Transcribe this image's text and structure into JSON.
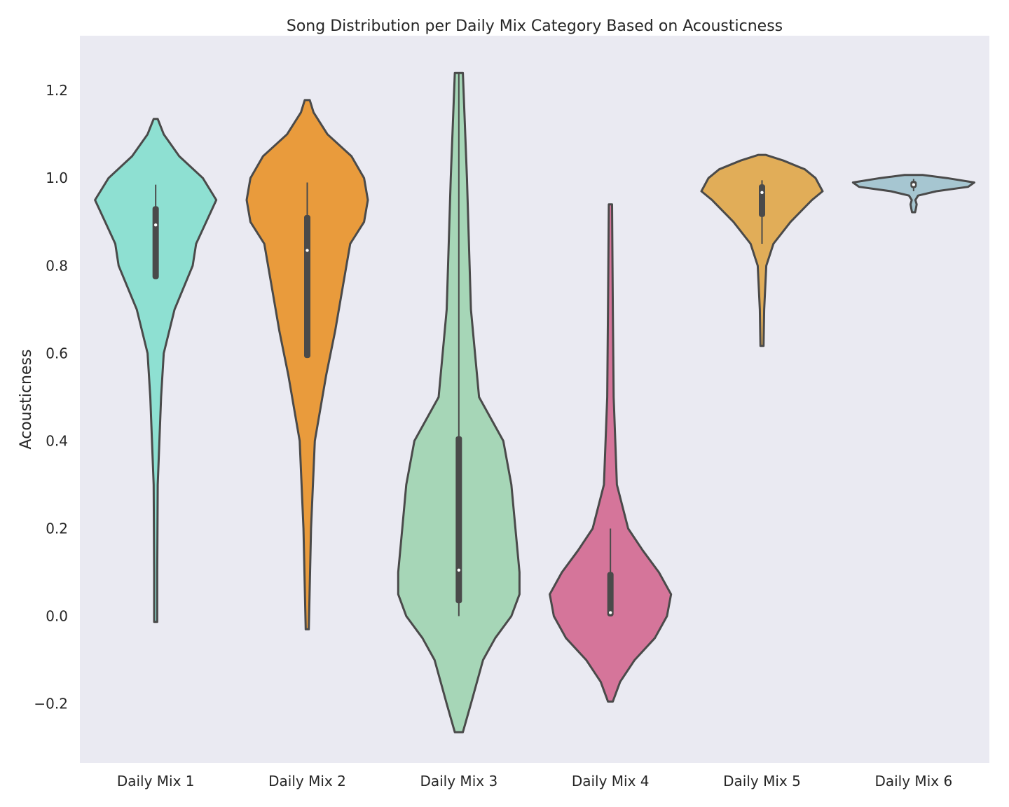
{
  "chart_data": {
    "type": "violin",
    "title": "Song Distribution per Daily Mix Category Based on Acousticness",
    "xlabel": "",
    "ylabel": "Acousticness",
    "ylim": [
      -0.335,
      1.325
    ],
    "yticks": [
      -0.2,
      0.0,
      0.2,
      0.4,
      0.6,
      0.8,
      1.0,
      1.2
    ],
    "ytick_labels": [
      "−0.2",
      "0.0",
      "0.2",
      "0.4",
      "0.6",
      "0.8",
      "1.0",
      "1.2"
    ],
    "grid": false,
    "background_color": "#eaeaf2",
    "outline_color": "#4a4a4a",
    "categories": [
      "Daily Mix 1",
      "Daily Mix 2",
      "Daily Mix 3",
      "Daily Mix 4",
      "Daily Mix 5",
      "Daily Mix 6"
    ],
    "series": [
      {
        "category": "Daily Mix 1",
        "color": "#8ee0d2",
        "min": -0.013,
        "max": 1.135,
        "q1": 0.77,
        "median": 0.893,
        "q3": 0.935,
        "whisker_low": 0.77,
        "whisker_high": 0.985,
        "density": [
          [
            -0.013,
            0.001
          ],
          [
            0.1,
            0.002
          ],
          [
            0.3,
            0.003
          ],
          [
            0.5,
            0.008
          ],
          [
            0.6,
            0.012
          ],
          [
            0.7,
            0.028
          ],
          [
            0.8,
            0.055
          ],
          [
            0.85,
            0.06
          ],
          [
            0.9,
            0.075
          ],
          [
            0.95,
            0.09
          ],
          [
            1.0,
            0.07
          ],
          [
            1.05,
            0.035
          ],
          [
            1.1,
            0.012
          ],
          [
            1.135,
            0.003
          ]
        ]
      },
      {
        "category": "Daily Mix 2",
        "color": "#e99b3c",
        "min": -0.03,
        "max": 1.178,
        "q1": 0.59,
        "median": 0.835,
        "q3": 0.915,
        "whisker_low": 0.59,
        "whisker_high": 0.99,
        "density": [
          [
            -0.03,
            0.001
          ],
          [
            0.2,
            0.003
          ],
          [
            0.4,
            0.006
          ],
          [
            0.55,
            0.015
          ],
          [
            0.65,
            0.022
          ],
          [
            0.75,
            0.028
          ],
          [
            0.85,
            0.034
          ],
          [
            0.9,
            0.045
          ],
          [
            0.95,
            0.048
          ],
          [
            1.0,
            0.045
          ],
          [
            1.05,
            0.035
          ],
          [
            1.1,
            0.016
          ],
          [
            1.15,
            0.005
          ],
          [
            1.178,
            0.002
          ]
        ]
      },
      {
        "category": "Daily Mix 3",
        "color": "#a6d6b7",
        "min": -0.265,
        "max": 1.24,
        "q1": 0.03,
        "median": 0.105,
        "q3": 0.41,
        "whisker_low": 0.0,
        "whisker_high": 1.24,
        "density": [
          [
            -0.265,
            0.002
          ],
          [
            -0.2,
            0.006
          ],
          [
            -0.1,
            0.012
          ],
          [
            -0.05,
            0.018
          ],
          [
            0.0,
            0.026
          ],
          [
            0.05,
            0.03
          ],
          [
            0.1,
            0.03
          ],
          [
            0.2,
            0.028
          ],
          [
            0.3,
            0.026
          ],
          [
            0.4,
            0.022
          ],
          [
            0.5,
            0.01
          ],
          [
            0.7,
            0.006
          ],
          [
            1.0,
            0.004
          ],
          [
            1.24,
            0.002
          ]
        ]
      },
      {
        "category": "Daily Mix 4",
        "color": "#d5759a",
        "min": -0.195,
        "max": 0.94,
        "q1": 0.0,
        "median": 0.008,
        "q3": 0.1,
        "whisker_low": 0.0,
        "whisker_high": 0.2,
        "density": [
          [
            -0.195,
            0.003
          ],
          [
            -0.15,
            0.012
          ],
          [
            -0.1,
            0.03
          ],
          [
            -0.05,
            0.055
          ],
          [
            0.0,
            0.07
          ],
          [
            0.05,
            0.075
          ],
          [
            0.1,
            0.06
          ],
          [
            0.15,
            0.04
          ],
          [
            0.2,
            0.022
          ],
          [
            0.3,
            0.008
          ],
          [
            0.5,
            0.004
          ],
          [
            0.7,
            0.003
          ],
          [
            0.94,
            0.002
          ]
        ]
      },
      {
        "category": "Daily Mix 5",
        "color": "#e1ad58",
        "min": 0.617,
        "max": 1.053,
        "q1": 0.912,
        "median": 0.967,
        "q3": 0.985,
        "whisker_low": 0.85,
        "whisker_high": 0.995,
        "density": [
          [
            0.617,
            0.002
          ],
          [
            0.7,
            0.003
          ],
          [
            0.8,
            0.006
          ],
          [
            0.85,
            0.016
          ],
          [
            0.9,
            0.04
          ],
          [
            0.95,
            0.07
          ],
          [
            0.97,
            0.085
          ],
          [
            1.0,
            0.075
          ],
          [
            1.02,
            0.06
          ],
          [
            1.04,
            0.03
          ],
          [
            1.053,
            0.005
          ]
        ]
      },
      {
        "category": "Daily Mix 6",
        "color": "#a6c6d1",
        "min": 0.922,
        "max": 1.007,
        "q1": 0.978,
        "median": 0.985,
        "q3": 0.993,
        "whisker_low": 0.97,
        "whisker_high": 0.998,
        "density": [
          [
            0.922,
            0.004
          ],
          [
            0.93,
            0.015
          ],
          [
            0.94,
            0.02
          ],
          [
            0.95,
            0.012
          ],
          [
            0.96,
            0.03
          ],
          [
            0.97,
            0.15
          ],
          [
            0.98,
            0.36
          ],
          [
            0.99,
            0.4
          ],
          [
            1.0,
            0.22
          ],
          [
            1.007,
            0.06
          ]
        ]
      }
    ]
  }
}
